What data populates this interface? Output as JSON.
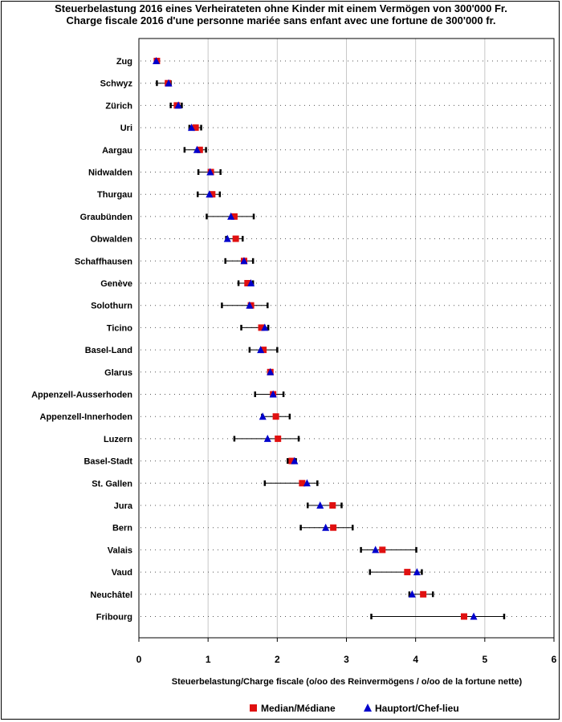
{
  "chart_data": {
    "type": "scatter",
    "title_line1": "Steuerbelastung 2016 eines Verheirateten ohne Kinder mit einem Vermögen von 300'000 Fr.",
    "title_line2": "Charge fiscale 2016 d'une personne mariée sans enfant avec une fortune de 300'000 fr.",
    "xlabel": "Steuerbelastung/Charge fiscale (o/oo des Reinvermögens / o/oo de la fortune nette)",
    "xlim": [
      0,
      6
    ],
    "xticks": [
      "0",
      "1",
      "2",
      "3",
      "4",
      "5",
      "6"
    ],
    "legend": {
      "median": "Median/Médiane",
      "capital": "Hauptort/Chef-lieu",
      "position": "bottom"
    },
    "colors": {
      "median": "#e01010",
      "capital": "#0000cc",
      "range": "#000000",
      "grid": "#c8c8c8"
    },
    "cantons": [
      {
        "name": "Zug",
        "min": 0.24,
        "max": 0.28,
        "median": 0.26,
        "capital": 0.25
      },
      {
        "name": "Schwyz",
        "min": 0.26,
        "max": 0.46,
        "median": 0.42,
        "capital": 0.43
      },
      {
        "name": "Zürich",
        "min": 0.46,
        "max": 0.62,
        "median": 0.55,
        "capital": 0.57
      },
      {
        "name": "Uri",
        "min": 0.73,
        "max": 0.9,
        "median": 0.82,
        "capital": 0.76
      },
      {
        "name": "Aargau",
        "min": 0.66,
        "max": 0.97,
        "median": 0.88,
        "capital": 0.84
      },
      {
        "name": "Nidwalden",
        "min": 0.86,
        "max": 1.18,
        "median": 1.04,
        "capital": 1.03
      },
      {
        "name": "Thurgau",
        "min": 0.85,
        "max": 1.17,
        "median": 1.06,
        "capital": 1.02
      },
      {
        "name": "Graubünden",
        "min": 0.98,
        "max": 1.66,
        "median": 1.38,
        "capital": 1.33
      },
      {
        "name": "Obwalden",
        "min": 1.26,
        "max": 1.5,
        "median": 1.4,
        "capital": 1.28
      },
      {
        "name": "Schaffhausen",
        "min": 1.25,
        "max": 1.65,
        "median": 1.52,
        "capital": 1.52
      },
      {
        "name": "Genève",
        "min": 1.44,
        "max": 1.65,
        "median": 1.57,
        "capital": 1.62
      },
      {
        "name": "Solothurn",
        "min": 1.2,
        "max": 1.86,
        "median": 1.62,
        "capital": 1.6
      },
      {
        "name": "Ticino",
        "min": 1.48,
        "max": 1.87,
        "median": 1.77,
        "capital": 1.82
      },
      {
        "name": "Basel-Land",
        "min": 1.6,
        "max": 2.0,
        "median": 1.8,
        "capital": 1.76
      },
      {
        "name": "Glarus",
        "min": 1.87,
        "max": 1.93,
        "median": 1.9,
        "capital": 1.9
      },
      {
        "name": "Appenzell-Ausserhoden",
        "min": 1.68,
        "max": 2.09,
        "median": 1.94,
        "capital": 1.94
      },
      {
        "name": "Appenzell-Innerhoden",
        "min": 1.78,
        "max": 2.18,
        "median": 1.98,
        "capital": 1.79
      },
      {
        "name": "Luzern",
        "min": 1.38,
        "max": 2.31,
        "median": 2.01,
        "capital": 1.86
      },
      {
        "name": "Basel-Stadt",
        "min": 2.15,
        "max": 2.27,
        "median": 2.21,
        "capital": 2.25
      },
      {
        "name": "St. Gallen",
        "min": 1.82,
        "max": 2.58,
        "median": 2.36,
        "capital": 2.43
      },
      {
        "name": "Jura",
        "min": 2.44,
        "max": 2.93,
        "median": 2.8,
        "capital": 2.62
      },
      {
        "name": "Bern",
        "min": 2.34,
        "max": 3.09,
        "median": 2.81,
        "capital": 2.7
      },
      {
        "name": "Valais",
        "min": 3.21,
        "max": 4.01,
        "median": 3.52,
        "capital": 3.42
      },
      {
        "name": "Vaud",
        "min": 3.34,
        "max": 4.09,
        "median": 3.88,
        "capital": 4.02
      },
      {
        "name": "Neuchâtel",
        "min": 3.91,
        "max": 4.25,
        "median": 4.11,
        "capital": 3.95
      },
      {
        "name": "Fribourg",
        "min": 3.36,
        "max": 5.28,
        "median": 4.7,
        "capital": 4.84
      }
    ]
  }
}
